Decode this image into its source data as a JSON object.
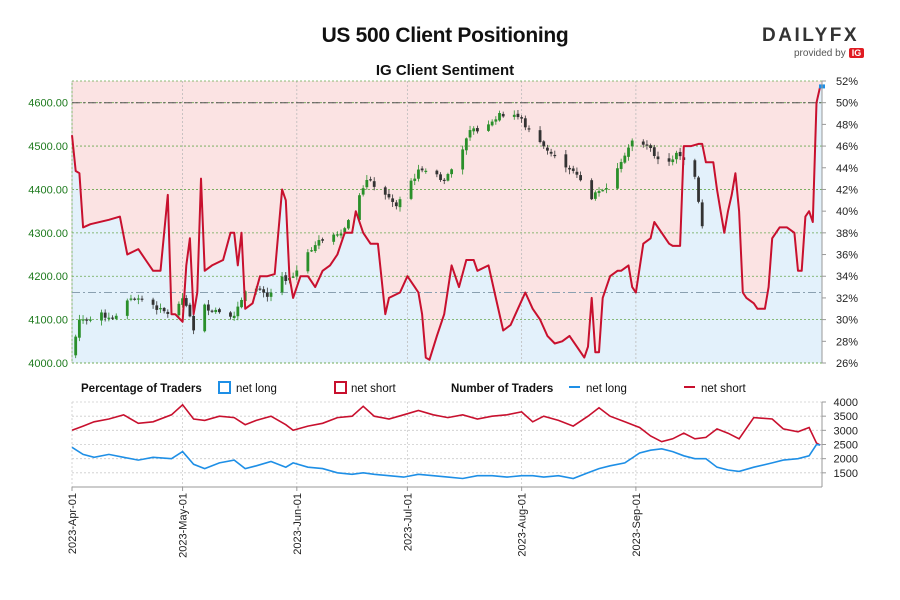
{
  "header": {
    "title": "US 500 Client Positioning",
    "subtitle": "IG Client Sentiment",
    "logo_main": "DAILYFX",
    "logo_provided": "provided by",
    "logo_ig": "IG"
  },
  "legend": {
    "pct_title": "Percentage of Traders",
    "pct_long": "net long",
    "pct_short": "net short",
    "num_title": "Number of Traders",
    "num_long": "net long",
    "num_short": "net short"
  },
  "colors": {
    "long": "#1e8fe6",
    "short": "#c8102e",
    "candle_up": "#2a8f2a",
    "candle_down": "#333333",
    "price_axis": "#1d7a1d",
    "short_fill": "#fbe3e3",
    "long_fill": "#e3f1fb"
  },
  "chart_data": [
    {
      "type": "candlestick+line",
      "title": "US 500 Client Positioning",
      "subtitle": "IG Client Sentiment",
      "price_axis": {
        "ylim": [
          4000,
          4650
        ],
        "ticks": [
          4000,
          4100,
          4200,
          4300,
          4400,
          4500,
          4600
        ],
        "tick_labels": [
          "4000.00",
          "4100.00",
          "4200.00",
          "4300.00",
          "4400.00",
          "4500.00",
          "4600.00"
        ]
      },
      "pct_axis": {
        "ylim": [
          26,
          52
        ],
        "ticks": [
          26,
          28,
          30,
          32,
          34,
          36,
          38,
          40,
          42,
          44,
          46,
          48,
          50,
          52
        ],
        "tick_labels": [
          "26%",
          "28%",
          "30%",
          "32%",
          "34%",
          "36%",
          "38%",
          "40%",
          "42%",
          "44%",
          "46%",
          "48%",
          "50%",
          "52%"
        ]
      },
      "reference_lines": {
        "upper_pct": 50,
        "lower_pct": 32.5
      },
      "x_labels": [
        "2023-Apr-01",
        "2023-May-01",
        "2023-Jun-01",
        "2023-Jul-01",
        "2023-Aug-01",
        "2023-Sep-01"
      ],
      "x_label_day_index": [
        0,
        30,
        61,
        91,
        122,
        153
      ],
      "close_anchors": [
        [
          0,
          4020
        ],
        [
          2,
          4100
        ],
        [
          5,
          4105
        ],
        [
          8,
          4110
        ],
        [
          12,
          4105
        ],
        [
          16,
          4150
        ],
        [
          20,
          4150
        ],
        [
          24,
          4120
        ],
        [
          28,
          4110
        ],
        [
          30,
          4150
        ],
        [
          33,
          4080
        ],
        [
          36,
          4130
        ],
        [
          40,
          4120
        ],
        [
          44,
          4110
        ],
        [
          47,
          4160
        ],
        [
          50,
          4170
        ],
        [
          53,
          4150
        ],
        [
          56,
          4190
        ],
        [
          60,
          4200
        ],
        [
          64,
          4260
        ],
        [
          67,
          4280
        ],
        [
          70,
          4290
        ],
        [
          74,
          4310
        ],
        [
          77,
          4380
        ],
        [
          80,
          4420
        ],
        [
          84,
          4400
        ],
        [
          88,
          4360
        ],
        [
          91,
          4410
        ],
        [
          95,
          4450
        ],
        [
          98,
          4440
        ],
        [
          101,
          4420
        ],
        [
          104,
          4460
        ],
        [
          108,
          4530
        ],
        [
          112,
          4550
        ],
        [
          116,
          4570
        ],
        [
          119,
          4580
        ],
        [
          122,
          4560
        ],
        [
          125,
          4520
        ],
        [
          128,
          4500
        ],
        [
          132,
          4470
        ],
        [
          135,
          4450
        ],
        [
          138,
          4420
        ],
        [
          140,
          4380
        ],
        [
          143,
          4390
        ],
        [
          146,
          4420
        ],
        [
          149,
          4470
        ],
        [
          152,
          4510
        ],
        [
          155,
          4510
        ],
        [
          158,
          4480
        ],
        [
          161,
          4460
        ],
        [
          164,
          4480
        ],
        [
          167,
          4460
        ],
        [
          169,
          4430
        ],
        [
          171,
          4320
        ]
      ],
      "pct_long_anchors": [
        [
          0,
          47
        ],
        [
          1,
          43.7
        ],
        [
          2,
          43.5
        ],
        [
          3,
          38.5
        ],
        [
          5,
          38.8
        ],
        [
          10,
          39.2
        ],
        [
          13,
          39.5
        ],
        [
          15,
          36
        ],
        [
          18,
          36.5
        ],
        [
          20,
          35.5
        ],
        [
          22,
          34.5
        ],
        [
          24,
          34.5
        ],
        [
          26,
          41.5
        ],
        [
          27,
          30.5
        ],
        [
          28,
          30.5
        ],
        [
          30,
          29.8
        ],
        [
          31,
          35
        ],
        [
          32,
          37.5
        ],
        [
          33,
          30.5
        ],
        [
          34,
          32.5
        ],
        [
          35,
          43
        ],
        [
          36,
          34.5
        ],
        [
          38,
          35.0
        ],
        [
          41,
          35.5
        ],
        [
          43,
          38
        ],
        [
          44,
          38
        ],
        [
          45,
          35
        ],
        [
          46,
          38
        ],
        [
          47,
          31
        ],
        [
          49,
          31.5
        ],
        [
          51,
          34
        ],
        [
          53,
          34.0
        ],
        [
          55,
          34.2
        ],
        [
          57,
          42
        ],
        [
          58,
          41
        ],
        [
          59,
          34
        ],
        [
          60,
          32
        ],
        [
          62,
          34
        ],
        [
          64,
          34
        ],
        [
          66,
          33
        ],
        [
          68,
          34.5
        ],
        [
          70,
          35
        ],
        [
          72,
          36
        ],
        [
          74,
          38
        ],
        [
          76,
          38
        ],
        [
          77,
          40
        ],
        [
          79,
          38
        ],
        [
          81,
          37
        ],
        [
          83,
          37
        ],
        [
          85,
          30.5
        ],
        [
          86,
          32
        ],
        [
          89,
          32.5
        ],
        [
          91,
          34
        ],
        [
          93,
          33
        ],
        [
          94,
          32.5
        ],
        [
          95,
          30.5
        ],
        [
          96,
          26.5
        ],
        [
          97,
          26.3
        ],
        [
          99,
          28.5
        ],
        [
          101,
          30.5
        ],
        [
          103,
          35
        ],
        [
          105,
          33
        ],
        [
          107,
          35.5
        ],
        [
          109,
          35.5
        ],
        [
          110,
          34.5
        ],
        [
          113,
          35
        ],
        [
          115,
          32
        ],
        [
          117,
          29
        ],
        [
          119,
          29.5
        ],
        [
          121,
          31
        ],
        [
          123,
          32.5
        ],
        [
          125,
          31
        ],
        [
          127,
          30
        ],
        [
          129,
          28.5
        ],
        [
          131,
          27.8
        ],
        [
          133,
          28
        ],
        [
          135,
          28.5
        ],
        [
          137,
          27.5
        ],
        [
          139,
          26.5
        ],
        [
          140,
          27.5
        ],
        [
          141,
          32
        ],
        [
          142,
          27.0
        ],
        [
          143,
          27.0
        ],
        [
          144,
          32
        ],
        [
          146,
          34
        ],
        [
          148,
          34.5
        ],
        [
          149,
          34.5
        ],
        [
          151,
          35
        ],
        [
          152,
          33
        ],
        [
          153,
          32.5
        ],
        [
          155,
          37
        ],
        [
          157,
          37.5
        ],
        [
          158,
          39
        ],
        [
          160,
          38
        ],
        [
          162,
          37
        ],
        [
          163,
          36.8
        ],
        [
          165,
          36.8
        ],
        [
          166,
          46
        ],
        [
          168,
          46
        ],
        [
          170,
          46.2
        ],
        [
          171,
          46.2
        ],
        [
          172,
          44.5
        ],
        [
          174,
          44.5
        ],
        [
          175,
          42
        ],
        [
          176,
          40
        ],
        [
          177,
          38
        ],
        [
          178,
          40
        ],
        [
          179,
          41.5
        ],
        [
          180,
          43.5
        ],
        [
          181,
          40
        ],
        [
          182,
          32.5
        ],
        [
          183,
          32
        ],
        [
          185,
          31.5
        ],
        [
          186,
          31
        ],
        [
          188,
          31.0
        ],
        [
          189,
          33
        ],
        [
          190,
          37.5
        ],
        [
          192,
          38.5
        ],
        [
          194,
          38.5
        ],
        [
          196,
          38
        ],
        [
          197,
          34.5
        ],
        [
          198,
          34.5
        ],
        [
          199,
          39.5
        ],
        [
          200,
          40
        ],
        [
          201,
          39
        ],
        [
          202,
          50
        ],
        [
          203,
          51.5
        ],
        [
          203.5,
          51.5
        ]
      ],
      "pct_range": [
        26,
        52
      ],
      "traders_axis": {
        "ylim": [
          1000,
          4000
        ],
        "ticks": [
          1500,
          2000,
          2500,
          3000,
          3500,
          4000
        ],
        "tick_labels": [
          "1500",
          "2000",
          "2500",
          "3000",
          "3500",
          "4000"
        ]
      },
      "net_short_anchors": [
        [
          0,
          3000
        ],
        [
          3,
          3150
        ],
        [
          6,
          3300
        ],
        [
          10,
          3400
        ],
        [
          14,
          3550
        ],
        [
          18,
          3250
        ],
        [
          22,
          3300
        ],
        [
          27,
          3550
        ],
        [
          30,
          3900
        ],
        [
          33,
          3400
        ],
        [
          36,
          3350
        ],
        [
          40,
          3500
        ],
        [
          44,
          3450
        ],
        [
          47,
          3200
        ],
        [
          50,
          3350
        ],
        [
          54,
          3500
        ],
        [
          58,
          3200
        ],
        [
          60,
          3000
        ],
        [
          64,
          3150
        ],
        [
          68,
          3250
        ],
        [
          72,
          3450
        ],
        [
          76,
          3500
        ],
        [
          79,
          3850
        ],
        [
          82,
          3500
        ],
        [
          86,
          3400
        ],
        [
          90,
          3550
        ],
        [
          94,
          3700
        ],
        [
          98,
          3550
        ],
        [
          102,
          3450
        ],
        [
          106,
          3550
        ],
        [
          110,
          3400
        ],
        [
          114,
          3500
        ],
        [
          118,
          3550
        ],
        [
          122,
          3650
        ],
        [
          125,
          3300
        ],
        [
          128,
          3500
        ],
        [
          132,
          3350
        ],
        [
          136,
          3150
        ],
        [
          140,
          3500
        ],
        [
          143,
          3800
        ],
        [
          146,
          3500
        ],
        [
          150,
          3300
        ],
        [
          154,
          3100
        ],
        [
          157,
          2800
        ],
        [
          160,
          2600
        ],
        [
          163,
          2700
        ],
        [
          166,
          2900
        ],
        [
          169,
          2700
        ],
        [
          172,
          2750
        ],
        [
          175,
          3050
        ],
        [
          178,
          2900
        ],
        [
          181,
          2700
        ],
        [
          185,
          3450
        ],
        [
          190,
          3400
        ],
        [
          193,
          3050
        ],
        [
          197,
          2950
        ],
        [
          200,
          3100
        ],
        [
          202,
          2550
        ],
        [
          203,
          2480
        ]
      ],
      "net_long_anchors": [
        [
          0,
          2400
        ],
        [
          3,
          2150
        ],
        [
          6,
          2050
        ],
        [
          10,
          2150
        ],
        [
          14,
          2050
        ],
        [
          18,
          1950
        ],
        [
          22,
          2050
        ],
        [
          27,
          2000
        ],
        [
          30,
          2250
        ],
        [
          33,
          1800
        ],
        [
          36,
          1650
        ],
        [
          40,
          1850
        ],
        [
          44,
          1950
        ],
        [
          47,
          1650
        ],
        [
          50,
          1750
        ],
        [
          54,
          1900
        ],
        [
          58,
          1700
        ],
        [
          60,
          1850
        ],
        [
          64,
          1700
        ],
        [
          68,
          1650
        ],
        [
          72,
          1500
        ],
        [
          76,
          1450
        ],
        [
          79,
          1500
        ],
        [
          82,
          1450
        ],
        [
          86,
          1400
        ],
        [
          90,
          1350
        ],
        [
          94,
          1450
        ],
        [
          98,
          1400
        ],
        [
          102,
          1350
        ],
        [
          106,
          1300
        ],
        [
          110,
          1400
        ],
        [
          114,
          1400
        ],
        [
          118,
          1350
        ],
        [
          122,
          1400
        ],
        [
          125,
          1400
        ],
        [
          128,
          1350
        ],
        [
          132,
          1400
        ],
        [
          136,
          1300
        ],
        [
          140,
          1500
        ],
        [
          143,
          1650
        ],
        [
          146,
          1750
        ],
        [
          150,
          1850
        ],
        [
          154,
          2200
        ],
        [
          157,
          2300
        ],
        [
          160,
          2350
        ],
        [
          163,
          2250
        ],
        [
          166,
          2100
        ],
        [
          169,
          2000
        ],
        [
          172,
          2000
        ],
        [
          175,
          1700
        ],
        [
          178,
          1600
        ],
        [
          181,
          1550
        ],
        [
          185,
          1700
        ],
        [
          190,
          1850
        ],
        [
          193,
          1950
        ],
        [
          197,
          2000
        ],
        [
          200,
          2100
        ],
        [
          202,
          2500
        ],
        [
          203,
          2480
        ]
      ]
    }
  ]
}
